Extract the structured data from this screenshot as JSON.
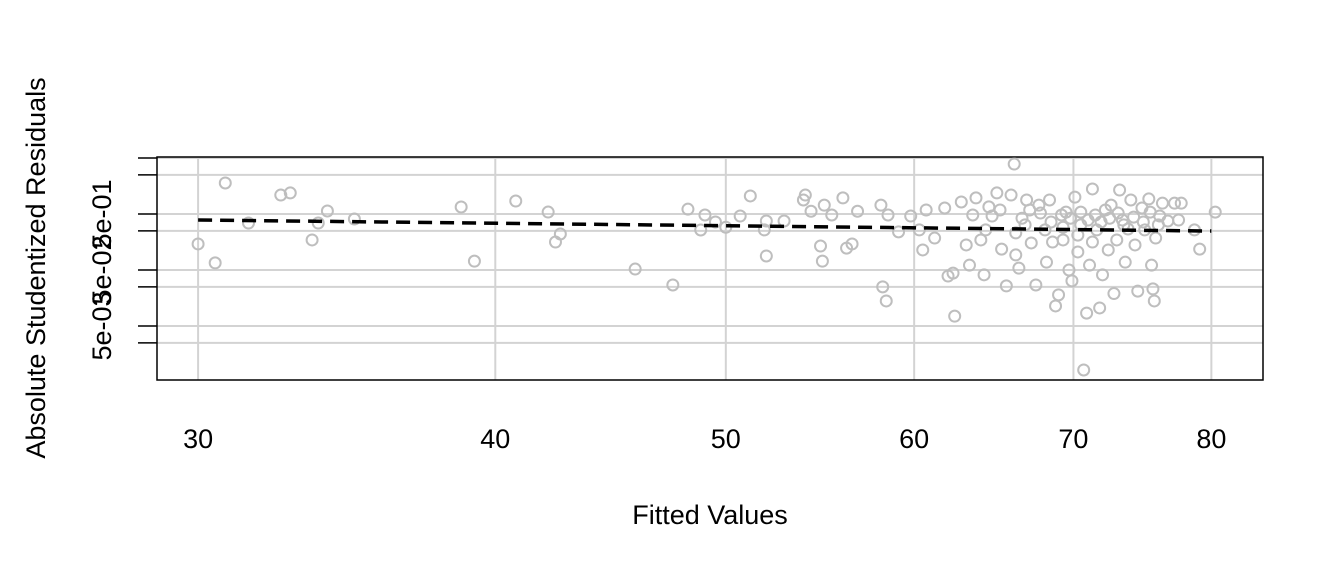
{
  "chart_data": {
    "type": "scatter",
    "xlabel": "Fitted Values",
    "ylabel": "Absolute Studentized Residuals",
    "x_log": true,
    "y_log": true,
    "grid": true,
    "xlim": [
      28.83,
      84.1
    ],
    "ylim": [
      0.000543,
      5.21
    ],
    "xticks": [
      30,
      40,
      50,
      60,
      70,
      80
    ],
    "yticks": [
      {
        "value": 0.5,
        "label": "5e-01"
      },
      {
        "value": 0.05,
        "label": "5e-02"
      },
      {
        "value": 0.005,
        "label": "5e-03"
      }
    ],
    "y_minor_ticks": [
      5,
      2.5,
      0.25,
      0.025,
      0.0025
    ],
    "color": "#bebebe",
    "x": [
      30,
      30.5,
      30.8,
      31.5,
      32.5,
      32.8,
      33.5,
      33.7,
      34.0,
      34.9,
      38.7,
      39.2,
      40.8,
      42.1,
      42.4,
      42.6,
      45.8,
      47.5,
      48.2,
      48.8,
      49.0,
      49.5,
      50.0,
      50.7,
      51.2,
      51.9,
      52.0,
      52.0,
      52.9,
      53.9,
      54.0,
      54.3,
      54.8,
      54.9,
      55.0,
      55.4,
      56.0,
      56.2,
      56.5,
      56.8,
      58.1,
      58.2,
      58.4,
      58.5,
      59.1,
      59.8,
      60.3,
      60.5,
      60.7,
      61.2,
      61.8,
      62.0,
      62.3,
      62.4,
      62.8,
      63.1,
      63.3,
      63.5,
      63.7,
      64.0,
      64.2,
      64.5,
      64.7,
      65.0,
      65.3,
      65.6,
      65.9,
      66.1,
      66.2,
      66.4,
      66.8,
      66.9,
      67.2,
      67.5,
      67.8,
      68.2,
      68.4,
      68.6,
      68.8,
      69.0,
      69.3,
      69.5,
      69.7,
      69.9,
      70.1,
      70.3,
      70.5,
      70.7,
      70.9,
      71.1,
      71.3,
      71.6,
      71.8,
      72.0,
      72.2,
      72.4,
      72.6,
      72.8,
      73.0,
      73.2,
      73.4,
      73.6,
      73.8,
      74.0,
      74.3,
      74.5,
      74.8,
      75.0,
      75.3,
      75.5,
      75.6,
      75.7,
      75.8,
      76.1,
      76.3,
      76.7,
      77.2,
      77.5,
      77.7,
      78.7,
      79.1,
      80.3,
      65.2,
      66.6,
      67.7,
      68.5,
      69.2,
      69.8,
      70.5,
      71.0,
      71.5,
      71.9,
      72.5,
      73.1,
      73.5,
      74.2,
      74.9,
      75.4,
      76.0,
      69.3,
      70.3,
      71.3,
      66.2,
      64.3,
      67.1,
      68.1
    ],
    "values": [
      0.146,
      0.067,
      1.79,
      0.345,
      1.09,
      1.19,
      0.172,
      0.345,
      0.566,
      0.407,
      0.667,
      0.072,
      0.853,
      0.542,
      0.158,
      0.22,
      0.052,
      0.027,
      0.61,
      0.259,
      0.48,
      0.36,
      0.29,
      0.46,
      1.05,
      0.26,
      0.089,
      0.375,
      0.375,
      0.89,
      1.09,
      0.56,
      0.134,
      0.072,
      0.72,
      0.48,
      0.97,
      0.123,
      0.146,
      0.56,
      0.72,
      0.025,
      0.014,
      0.48,
      0.24,
      0.46,
      0.26,
      0.114,
      0.59,
      0.186,
      0.64,
      0.039,
      0.044,
      0.0075,
      0.82,
      0.14,
      0.061,
      0.48,
      0.97,
      0.172,
      0.041,
      0.67,
      0.46,
      1.19,
      0.118,
      0.026,
      1.09,
      3.9,
      0.093,
      0.054,
      0.32,
      0.89,
      0.152,
      0.027,
      0.52,
      0.069,
      0.89,
      0.158,
      0.0114,
      0.018,
      0.29,
      0.54,
      0.05,
      0.032,
      1.0,
      0.105,
      0.32,
      0.00082,
      0.0085,
      0.061,
      1.4,
      0.26,
      0.0105,
      0.041,
      0.59,
      0.114,
      0.72,
      0.019,
      0.172,
      1.34,
      0.39,
      0.069,
      0.27,
      0.89,
      0.14,
      0.021,
      0.64,
      0.26,
      0.93,
      0.061,
      0.023,
      0.014,
      0.186,
      0.46,
      0.78,
      0.375,
      0.78,
      0.39,
      0.78,
      0.26,
      0.118,
      0.54,
      0.59,
      0.42,
      0.72,
      0.36,
      0.48,
      0.42,
      0.54,
      0.39,
      0.48,
      0.36,
      0.42,
      0.52,
      0.32,
      0.44,
      0.36,
      0.54,
      0.32,
      0.172,
      0.21,
      0.158,
      0.23,
      0.26,
      0.59,
      0.26
    ],
    "fit": {
      "x": [
        30,
        80
      ],
      "values": [
        0.391,
        0.248
      ],
      "color": "#000000",
      "dashed": true
    }
  }
}
